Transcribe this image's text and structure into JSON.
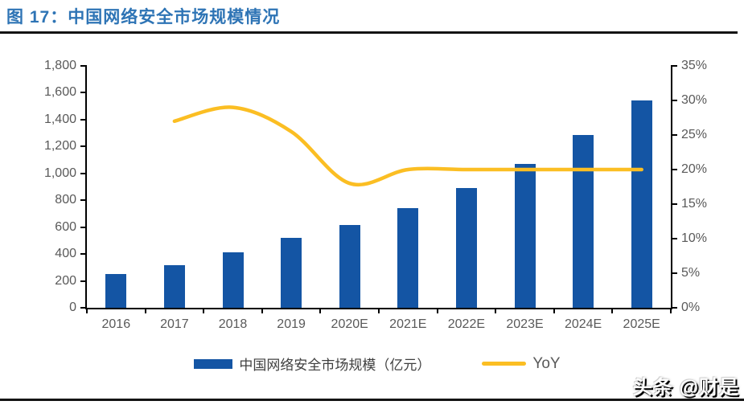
{
  "header": {
    "title": "图 17：中国网络安全市场规模情况"
  },
  "footer": {
    "watermark": "头条 @财是"
  },
  "colors": {
    "title": "#2E74B5",
    "bar": "#1455A4",
    "line": "#FBBE23",
    "axis_text": "#595959",
    "rule": "#141414"
  },
  "chart_data": {
    "type": "bar",
    "subtype": "bar-line-combo",
    "title": "中国网络安全市场规模情况",
    "categories": [
      "2016",
      "2017",
      "2018",
      "2019",
      "2020E",
      "2021E",
      "2022E",
      "2023E",
      "2024E",
      "2025E"
    ],
    "series": [
      {
        "name": "中国网络安全市场规模（亿元）",
        "type": "bar",
        "axis": "left",
        "values": [
          250,
          320,
          415,
          520,
          615,
          740,
          890,
          1070,
          1285,
          1540
        ]
      },
      {
        "name": "YoY",
        "type": "line",
        "axis": "right",
        "values": [
          null,
          27,
          29,
          25.5,
          18,
          20,
          20,
          20,
          20,
          20
        ]
      }
    ],
    "left_axis": {
      "min": 0,
      "max": 1800,
      "step": 200,
      "tick_labels": [
        "0",
        "200",
        "400",
        "600",
        "800",
        "1,000",
        "1,200",
        "1,400",
        "1,600",
        "1,800"
      ]
    },
    "right_axis": {
      "min": 0,
      "max": 35,
      "step": 5,
      "tick_labels": [
        "0%",
        "5%",
        "10%",
        "15%",
        "20%",
        "25%",
        "30%",
        "35%"
      ]
    },
    "grid": "off",
    "legend_position": "bottom"
  }
}
